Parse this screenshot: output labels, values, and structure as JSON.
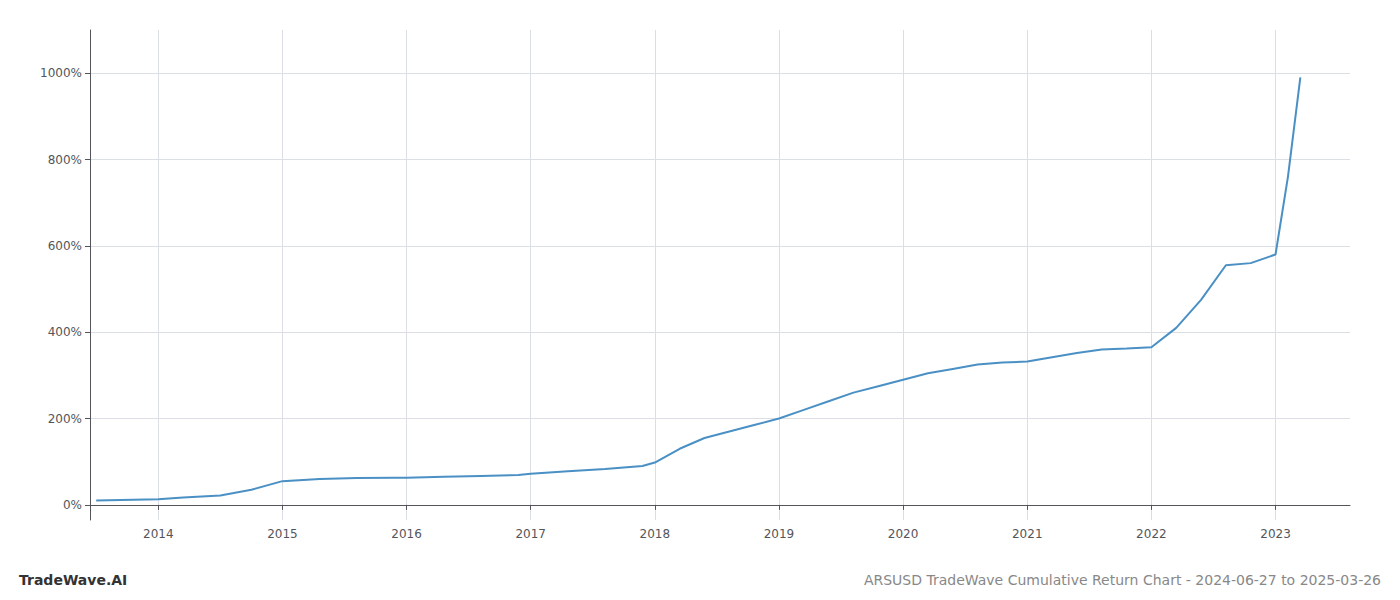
{
  "chart_data": {
    "type": "line",
    "title": "ARSUSD TradeWave Cumulative Return Chart - 2024-06-27 to 2025-03-26",
    "annotations": [
      "TradeWave.AI"
    ],
    "color": "#4a90c4",
    "grid": true,
    "x": [
      2013.5,
      2014.0,
      2014.2,
      2014.5,
      2014.75,
      2015.0,
      2015.3,
      2015.6,
      2015.9,
      2016.0,
      2016.3,
      2016.6,
      2016.9,
      2017.0,
      2017.3,
      2017.6,
      2017.9,
      2018.0,
      2018.2,
      2018.4,
      2018.6,
      2018.8,
      2019.0,
      2019.2,
      2019.4,
      2019.6,
      2019.8,
      2020.0,
      2020.2,
      2020.4,
      2020.6,
      2020.8,
      2021.0,
      2021.2,
      2021.4,
      2021.6,
      2021.8,
      2022.0,
      2022.2,
      2022.4,
      2022.6,
      2022.8,
      2023.0,
      2023.1,
      2023.2
    ],
    "values": [
      10,
      13,
      17,
      22,
      35,
      55,
      60,
      62,
      63,
      63,
      65,
      67,
      69,
      72,
      78,
      83,
      90,
      98,
      130,
      155,
      170,
      185,
      200,
      220,
      240,
      260,
      275,
      290,
      305,
      315,
      325,
      330,
      332,
      342,
      352,
      360,
      362,
      365,
      410,
      475,
      555,
      560,
      580,
      760,
      990
    ],
    "xlim": [
      2013.45,
      2023.6
    ],
    "xticks": [
      2014,
      2015,
      2016,
      2017,
      2018,
      2019,
      2020,
      2021,
      2022,
      2023
    ],
    "ylim": [
      -35,
      1100
    ],
    "yticks": [
      {
        "value": 0,
        "label": "0%"
      },
      {
        "value": 200,
        "label": "200%"
      },
      {
        "value": 400,
        "label": "400%"
      },
      {
        "value": 600,
        "label": "600%"
      },
      {
        "value": 800,
        "label": "800%"
      },
      {
        "value": 1000,
        "label": "1000%"
      }
    ]
  }
}
